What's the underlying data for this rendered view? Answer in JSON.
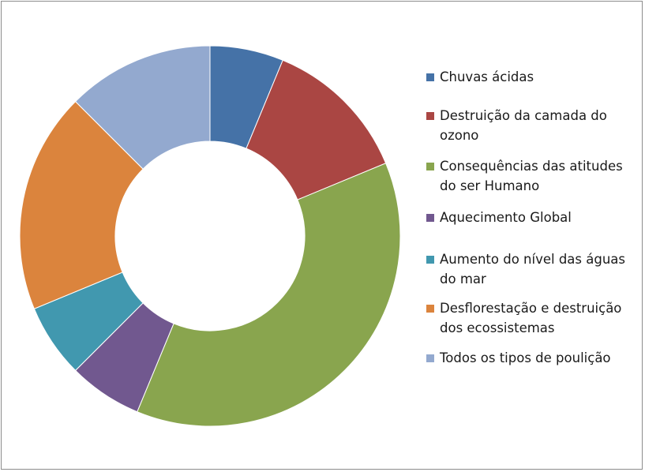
{
  "chart_data": {
    "type": "pie",
    "variant": "doughnut",
    "title": "",
    "categories": [
      "Chuvas ácidas",
      "Destruição da camada do ozono",
      "Consequências das atitudes do ser Humano",
      "Aquecimento Global",
      "Aumento do nível das águas do mar",
      "Desflorestação e destruição dos ecossistemas",
      "Todos os tipos de poulição"
    ],
    "values": [
      1,
      2,
      6,
      1,
      1,
      3,
      2
    ],
    "colors": [
      "#4572a7",
      "#aa4643",
      "#89a54e",
      "#71588f",
      "#4198af",
      "#db843d",
      "#93a9cf"
    ],
    "legend_position": "right"
  }
}
